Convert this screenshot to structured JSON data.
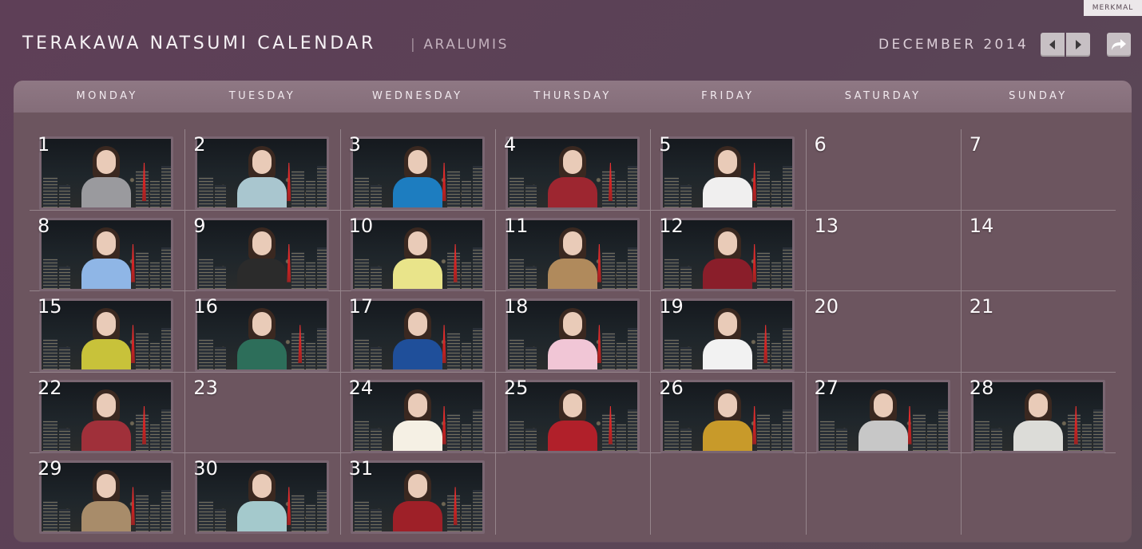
{
  "badge": "MERKMAL",
  "title": "TERAKAWA NATSUMI CALENDAR",
  "subtitle_sep": "|",
  "subtitle": "ARALUMIS",
  "month": "DECEMBER 2014",
  "nav": {
    "prev_icon": "triangle-left-icon",
    "next_icon": "triangle-right-icon",
    "share_icon": "share-arrow-icon"
  },
  "weekdays": [
    "MONDAY",
    "TUESDAY",
    "WEDNESDAY",
    "THURSDAY",
    "FRIDAY",
    "SATURDAY",
    "SUNDAY"
  ],
  "days": [
    {
      "day": "1",
      "photo": true,
      "outfit": "#9a9a9e"
    },
    {
      "day": "2",
      "photo": true,
      "outfit": "#a9c6cf"
    },
    {
      "day": "3",
      "photo": true,
      "outfit": "#1d7dc0"
    },
    {
      "day": "4",
      "photo": true,
      "outfit": "#9d2630"
    },
    {
      "day": "5",
      "photo": true,
      "outfit": "#f0efef"
    },
    {
      "day": "6",
      "photo": false
    },
    {
      "day": "7",
      "photo": false
    },
    {
      "day": "8",
      "photo": true,
      "outfit": "#8fb6e6"
    },
    {
      "day": "9",
      "photo": true,
      "outfit": "#2b2b2b"
    },
    {
      "day": "10",
      "photo": true,
      "outfit": "#e9e48a"
    },
    {
      "day": "11",
      "photo": true,
      "outfit": "#b08a5c"
    },
    {
      "day": "12",
      "photo": true,
      "outfit": "#8a1e2a"
    },
    {
      "day": "13",
      "photo": false
    },
    {
      "day": "14",
      "photo": false
    },
    {
      "day": "15",
      "photo": true,
      "outfit": "#c8c23a"
    },
    {
      "day": "16",
      "photo": true,
      "outfit": "#2d6e5a"
    },
    {
      "day": "17",
      "photo": true,
      "outfit": "#1f4f9a"
    },
    {
      "day": "18",
      "photo": true,
      "outfit": "#f1c6d6"
    },
    {
      "day": "19",
      "photo": true,
      "outfit": "#f2f2f2"
    },
    {
      "day": "20",
      "photo": false
    },
    {
      "day": "21",
      "photo": false
    },
    {
      "day": "22",
      "photo": true,
      "outfit": "#a0303a"
    },
    {
      "day": "23",
      "photo": false
    },
    {
      "day": "24",
      "photo": true,
      "outfit": "#f5f0e4"
    },
    {
      "day": "25",
      "photo": true,
      "outfit": "#b1202a"
    },
    {
      "day": "26",
      "photo": true,
      "outfit": "#c89a2a"
    },
    {
      "day": "27",
      "photo": true,
      "outfit": "#c7c7c7"
    },
    {
      "day": "28",
      "photo": true,
      "outfit": "#dcdcd8"
    },
    {
      "day": "29",
      "photo": true,
      "outfit": "#a88c6a"
    },
    {
      "day": "30",
      "photo": true,
      "outfit": "#a4c9cc"
    },
    {
      "day": "31",
      "photo": true,
      "outfit": "#9e2028"
    }
  ]
}
